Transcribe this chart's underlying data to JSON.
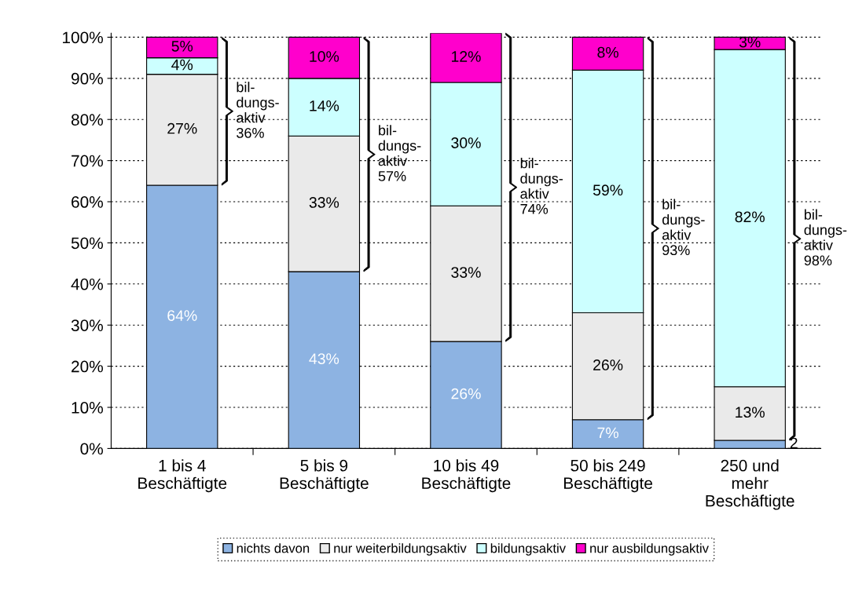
{
  "chart_data": {
    "type": "bar",
    "stacked": true,
    "categories": [
      "1 bis 4\nBeschäftigte",
      "5 bis 9\nBeschäftigte",
      "10 bis 49\nBeschäftigte",
      "50 bis 249\nBeschäftigte",
      "250 und\nmehr\nBeschäftigte"
    ],
    "series": [
      {
        "name": "nichts davon",
        "color": "#8db3e2",
        "values": [
          64,
          43,
          26,
          7,
          2
        ],
        "value_labels": [
          "64%",
          "43%",
          "26%",
          "7%",
          "2"
        ]
      },
      {
        "name": "nur weiterbildungsaktiv",
        "color": "#eaeaea",
        "values": [
          27,
          33,
          33,
          26,
          13
        ],
        "value_labels": [
          "27%",
          "33%",
          "33%",
          "26%",
          "13%"
        ]
      },
      {
        "name": "bildungsaktiv",
        "color": "#ccffff",
        "values": [
          4,
          14,
          30,
          59,
          82
        ],
        "value_labels": [
          "4%",
          "14%",
          "30%",
          "59%",
          "82%"
        ]
      },
      {
        "name": "nur ausbildungsaktiv",
        "color": "#ff00cc",
        "values": [
          5,
          10,
          12,
          8,
          3
        ],
        "value_labels": [
          "5%",
          "10%",
          "12%",
          "8%",
          "3%"
        ]
      }
    ],
    "ylim": [
      0,
      101
    ],
    "yticks": [
      {
        "value": 0,
        "label": "0%"
      },
      {
        "value": 10,
        "label": "10%"
      },
      {
        "value": 20,
        "label": "20%"
      },
      {
        "value": 30,
        "label": "30%"
      },
      {
        "value": 40,
        "label": "40%"
      },
      {
        "value": 50,
        "label": "50%"
      },
      {
        "value": 60,
        "label": "60%"
      },
      {
        "value": 70,
        "label": "70%"
      },
      {
        "value": 80,
        "label": "80%"
      },
      {
        "value": 90,
        "label": "90%"
      },
      {
        "value": 100,
        "label": "100%"
      }
    ],
    "grid": "y",
    "legend": "bottom",
    "annotations": [
      "bil-\ndungs-\naktiv\n36%",
      "bil-\ndungs-\naktiv\n57%",
      "bil-\ndungs-\naktiv\n74%",
      "bil-\ndungs-\naktiv\n93%",
      "bil-\ndungs-\naktiv\n98%"
    ]
  }
}
